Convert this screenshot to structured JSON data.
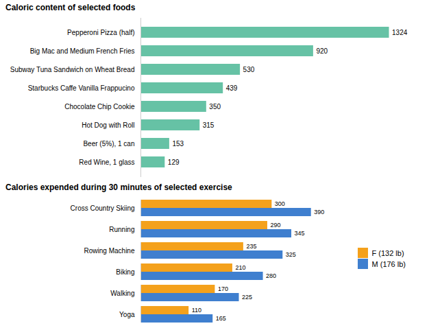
{
  "chart_data": [
    {
      "type": "bar",
      "orientation": "horizontal",
      "title": "Caloric content of selected foods",
      "categories": [
        "Red Wine, 1 glass",
        "Beer (5%), 1 can",
        "Hot Dog with Roll",
        "Chocolate Chip Cookie",
        "Starbucks Caffe Vanilla Frappucino",
        "Subway Tuna Sandwich on Wheat Bread",
        "Big Mac and Medium French Fries",
        "Pepperoni Pizza (half)"
      ],
      "values": [
        129,
        153,
        315,
        350,
        439,
        530,
        920,
        1324
      ],
      "color": "#66c2a5",
      "xlim": [
        0,
        1450
      ],
      "data_labels": true,
      "tick_labels": "y",
      "grid": false
    },
    {
      "type": "bar",
      "orientation": "horizontal",
      "title": "Calories expended during 30 minutes of selected exercise",
      "categories": [
        "Yoga",
        "Walking",
        "Biking",
        "Rowing Machine",
        "Running",
        "Cross Country Skiing"
      ],
      "series": [
        {
          "name": "F (132 lb)",
          "color": "#f4a11c",
          "values": [
            110,
            170,
            210,
            235,
            290,
            300
          ]
        },
        {
          "name": "M (176 lb)",
          "color": "#3f7fcf",
          "values": [
            165,
            225,
            280,
            325,
            345,
            390
          ]
        }
      ],
      "xlim": [
        0,
        450
      ],
      "data_labels": true,
      "tick_labels": "y",
      "legend": "right",
      "grid": false
    }
  ]
}
